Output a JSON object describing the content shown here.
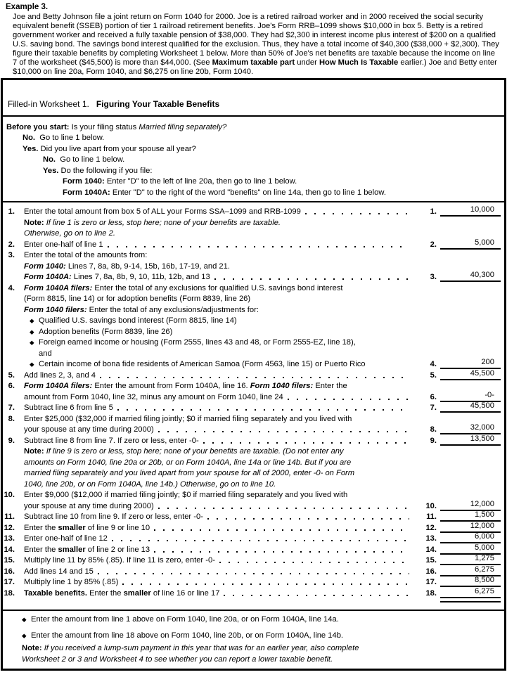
{
  "example": {
    "heading": "Example 3.",
    "body": [
      [
        "n",
        "Joe and Betty Johnson file a joint return on Form 1040 for 2000. Joe is a retired railroad worker and in 2000 received the social security equivalent benefit (SSEB) portion of tier 1 railroad retirement benefits. Joe's Form RRB–1099 shows $10,000 in box 5. Betty is a retired government worker and received a fully taxable pension of $38,000. They had $2,300 in interest income plus interest of $200 on a qualified U.S. saving bond. The savings bond interest qualified for the exclusion. Thus, they have a total income of $40,300 ($38,000 + $2,300). They figure their taxable benefits by completing Worksheet 1 below. More than 50% of Joe's net benefits are taxable because the income on line 7 of the worksheet ($45,500) is more than $44,000. (See "
      ],
      [
        "b",
        "Maximum taxable part"
      ],
      [
        "n",
        " under "
      ],
      [
        "b",
        "How Much Is Taxable"
      ],
      [
        "n",
        " earlier.) Joe and Betty enter $10,000 on line 20a, Form 1040, and $6,275 on line 20b, Form 1040."
      ]
    ]
  },
  "worksheet": {
    "title_prefix": "Filled-in Worksheet 1.",
    "title_bold": "Figuring Your Taxable Benefits",
    "before_you_start": [
      {
        "ind": 0,
        "seg": [
          [
            "b",
            "Before you start: "
          ],
          [
            "n",
            "Is your filing status "
          ],
          [
            "i",
            "Married filing separately?"
          ]
        ]
      },
      {
        "ind": 23,
        "seg": [
          [
            "b",
            "No."
          ],
          [
            "n",
            "  Go to line 1 below."
          ]
        ]
      },
      {
        "ind": 23,
        "seg": [
          [
            "b",
            "Yes."
          ],
          [
            "n",
            " Did you live apart from your spouse all year?"
          ]
        ]
      },
      {
        "ind": 52,
        "seg": [
          [
            "b",
            "No."
          ],
          [
            "n",
            "  Go to line 1 below."
          ]
        ]
      },
      {
        "ind": 52,
        "seg": [
          [
            "b",
            "Yes."
          ],
          [
            "n",
            " Do the following if you file:"
          ]
        ]
      },
      {
        "ind": 80,
        "seg": [
          [
            "b",
            "Form 1040: "
          ],
          [
            "n",
            "Enter \"D\" to the left of line 20a, then go to line 1 below."
          ]
        ]
      },
      {
        "ind": 80,
        "seg": [
          [
            "b",
            "Form 1040A: "
          ],
          [
            "n",
            "Enter \"D\" to the right of the word \"benefits\" on line 14a, then go to line 1 below."
          ]
        ]
      }
    ],
    "lines": [
      {
        "num": "1.",
        "seg": [
          [
            "n",
            "Enter the total amount from box 5 of ALL your Forms SSA–1099 and RRB-1099"
          ]
        ],
        "leader": true,
        "ref": "1.",
        "amt": "10,000"
      },
      {
        "seg": [
          [
            "b",
            "Note: "
          ],
          [
            "i",
            "If line 1 is zero or less, stop here; none of your benefits are taxable."
          ]
        ]
      },
      {
        "seg": [
          [
            "i",
            "Otherwise, go on to line 2."
          ]
        ]
      },
      {
        "num": "2.",
        "seg": [
          [
            "n",
            "Enter one-half of line 1"
          ]
        ],
        "leader": true,
        "ref": "2.",
        "amt": "5,000"
      },
      {
        "num": "3.",
        "seg": [
          [
            "n",
            "Enter the total of the amounts from:"
          ]
        ]
      },
      {
        "seg": [
          [
            "bi",
            "Form 1040: "
          ],
          [
            "n",
            "Lines 7, 8a, 8b, 9-14, 15b, 16b, 17-19, and 21."
          ]
        ]
      },
      {
        "seg": [
          [
            "bi",
            "Form 1040A: "
          ],
          [
            "n",
            "Lines 7, 8a, 8b, 9, 10, 11b, 12b, and 13"
          ]
        ],
        "leader": true,
        "ref": "3.",
        "amt": "40,300"
      },
      {
        "num": "4.",
        "seg": [
          [
            "bi",
            "Form 1040A filers: "
          ],
          [
            "n",
            "Enter the total of any exclusions for qualified U.S. savings bond interest"
          ]
        ]
      },
      {
        "seg": [
          [
            "n",
            "(Form 8815, line 14) or for adoption benefits (Form 8839, line 26)"
          ]
        ]
      },
      {
        "seg": [
          [
            "bi",
            "Form 1040 filers: "
          ],
          [
            "n",
            "Enter the total of any exclusions/adjustments for:"
          ]
        ]
      },
      {
        "ind": 8,
        "bullet": true,
        "seg": [
          [
            "n",
            "Qualified U.S. savings bond interest (Form 8815, line 14)"
          ]
        ]
      },
      {
        "ind": 8,
        "bullet": true,
        "seg": [
          [
            "n",
            "Adoption benefits (Form 8839, line 26)"
          ]
        ]
      },
      {
        "ind": 8,
        "bullet": true,
        "seg": [
          [
            "n",
            "Foreign earned income or housing (Form 2555, lines 43 and 48, or Form 2555-EZ, line 18),"
          ]
        ]
      },
      {
        "ind": 21,
        "seg": [
          [
            "n",
            "and"
          ]
        ]
      },
      {
        "ind": 8,
        "bullet": true,
        "seg": [
          [
            "n",
            "Certain income of bona fide residents of American Samoa (Form 4563, line 15) or Puerto Rico"
          ]
        ],
        "nodots": true,
        "ref": "4.",
        "amt": "200"
      },
      {
        "num": "5.",
        "seg": [
          [
            "n",
            "Add lines 2, 3, and 4"
          ]
        ],
        "leader": true,
        "ref": "5.",
        "amt": "45,500"
      },
      {
        "num": "6.",
        "seg": [
          [
            "bi",
            "Form 1040A filers: "
          ],
          [
            "n",
            "Enter the amount from Form 1040A, line 16. "
          ],
          [
            "bi",
            "Form 1040 filers: "
          ],
          [
            "n",
            "Enter the"
          ]
        ]
      },
      {
        "seg": [
          [
            "n",
            "amount from Form 1040, line 32, minus any amount on Form 1040, line 24"
          ]
        ],
        "leader": true,
        "ref": "6.",
        "amt": "-0-"
      },
      {
        "num": "7.",
        "seg": [
          [
            "n",
            "Subtract line 6 from line 5"
          ]
        ],
        "leader": true,
        "ref": "7.",
        "amt": "45,500"
      },
      {
        "num": "8.",
        "seg": [
          [
            "n",
            "Enter $25,000 ($32,000 if married filing jointly; $0 if married filing separately and you lived with"
          ]
        ]
      },
      {
        "seg": [
          [
            "n",
            "your spouse at any time during 2000)"
          ]
        ],
        "leader": true,
        "ref": "8.",
        "amt": "32,000"
      },
      {
        "num": "9.",
        "seg": [
          [
            "n",
            "Subtract line 8 from line 7. If zero or less, enter -0-"
          ]
        ],
        "leader": true,
        "ref": "9.",
        "amt": "13,500"
      },
      {
        "seg": [
          [
            "b",
            "Note: "
          ],
          [
            "i",
            "If line 9 is zero or less, stop here; none of your benefits are taxable. (Do not enter any"
          ]
        ]
      },
      {
        "seg": [
          [
            "i",
            "amounts on Form 1040, line 20a or 20b, or on Form 1040A, line 14a or line 14b. But if you are"
          ]
        ]
      },
      {
        "seg": [
          [
            "i",
            "married filing separately and you lived apart from your spouse for all of 2000, enter -0- on Form"
          ]
        ]
      },
      {
        "seg": [
          [
            "i",
            "1040, line 20b, or on Form 1040A, line 14b.) Otherwise, go on to line 10."
          ]
        ]
      },
      {
        "num": "10.",
        "seg": [
          [
            "n",
            "Enter $9,000 ($12,000 if married filing jointly; $0 if married filing separately and you lived with"
          ]
        ]
      },
      {
        "seg": [
          [
            "n",
            "your spouse at any time during 2000)"
          ]
        ],
        "leader": true,
        "ref": "10.",
        "amt": "12,000"
      },
      {
        "num": "11.",
        "seg": [
          [
            "n",
            "Subtract line 10 from line 9. If zero or less, enter -0-"
          ]
        ],
        "leader": true,
        "ref": "11.",
        "amt": "1,500"
      },
      {
        "num": "12.",
        "seg": [
          [
            "n",
            "Enter the "
          ],
          [
            "b",
            "smaller"
          ],
          [
            "n",
            " of line 9 or line 10"
          ]
        ],
        "leader": true,
        "ref": "12.",
        "amt": "12,000"
      },
      {
        "num": "13.",
        "seg": [
          [
            "n",
            "Enter one-half of line 12"
          ]
        ],
        "leader": true,
        "ref": "13.",
        "amt": "6,000"
      },
      {
        "num": "14.",
        "seg": [
          [
            "n",
            "Enter the "
          ],
          [
            "b",
            "smaller"
          ],
          [
            "n",
            " of line 2 or line 13"
          ]
        ],
        "leader": true,
        "ref": "14.",
        "amt": "5,000"
      },
      {
        "num": "15.",
        "seg": [
          [
            "n",
            "Multiply line 11 by 85% (.85). If line 11 is zero, enter -0-"
          ]
        ],
        "leader": true,
        "ref": "15.",
        "amt": "1,275"
      },
      {
        "num": "16.",
        "seg": [
          [
            "n",
            "Add lines 14 and 15"
          ]
        ],
        "leader": true,
        "ref": "16.",
        "amt": "6,275"
      },
      {
        "num": "17.",
        "seg": [
          [
            "n",
            "Multiply line 1 by 85% (.85)"
          ]
        ],
        "leader": true,
        "ref": "17.",
        "amt": "8,500"
      },
      {
        "num": "18.",
        "seg": [
          [
            "b",
            "Taxable benefits. "
          ],
          [
            "n",
            "Enter the "
          ],
          [
            "b",
            "smaller"
          ],
          [
            "n",
            " of line 16 or line 17"
          ]
        ],
        "leader": true,
        "ref": "18.",
        "amt": "6,275",
        "dbl": true
      }
    ],
    "footer": [
      {
        "bullet": true,
        "mb": 7,
        "seg": [
          [
            "n",
            "Enter the amount from line 1 above on Form 1040, line 20a, or on Form 1040A, line 14a."
          ]
        ]
      },
      {
        "bullet": true,
        "mb": 3,
        "seg": [
          [
            "n",
            "Enter the amount from line 18 above on Form 1040, line 20b, or on Form 1040A, line 14b."
          ]
        ]
      },
      {
        "seg": [
          [
            "b",
            "Note: "
          ],
          [
            "i",
            "If you received a lump-sum payment in this year that was for an earlier year, also complete"
          ]
        ]
      },
      {
        "seg": [
          [
            "i",
            "Worksheet 2 or 3 and Worksheet 4 to see whether you can report a lower taxable benefit."
          ]
        ]
      }
    ]
  }
}
